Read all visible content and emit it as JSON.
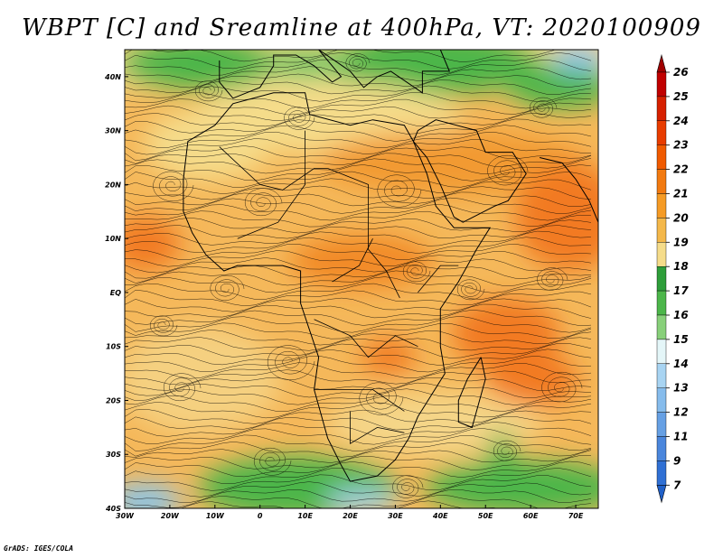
{
  "title": "WBPT [C] and Sreamline at 400hPa, VT: 2020100909",
  "credit": "GrADS: IGES/COLA",
  "map": {
    "lat_labels": [
      "40N",
      "30N",
      "20N",
      "10N",
      "EQ",
      "10S",
      "20S",
      "30S",
      "40S"
    ],
    "lon_labels": [
      "30W",
      "20W",
      "10W",
      "0",
      "10E",
      "20E",
      "30E",
      "40E",
      "50E",
      "60E",
      "70E"
    ],
    "extent": {
      "lon_min": -30,
      "lon_max": 75,
      "lat_min": -40,
      "lat_max": 45
    }
  },
  "colorbar": {
    "labels": [
      "26",
      "25",
      "24",
      "23",
      "22",
      "21",
      "20",
      "19",
      "18",
      "17",
      "16",
      "15",
      "14",
      "13",
      "12",
      "11",
      "9",
      "7"
    ],
    "colors": [
      "#c00000",
      "#d62000",
      "#e83c00",
      "#f05a00",
      "#f27a10",
      "#f59b25",
      "#f4b84a",
      "#f5dc8a",
      "#2e9e3a",
      "#4cb64a",
      "#88d07a",
      "#e4f6f8",
      "#a8d4f2",
      "#86bcec",
      "#66a0e4",
      "#4a86dc",
      "#3070d4"
    ],
    "top_arrow_color": "#a00000",
    "bottom_arrow_color": "#2060c8"
  }
}
